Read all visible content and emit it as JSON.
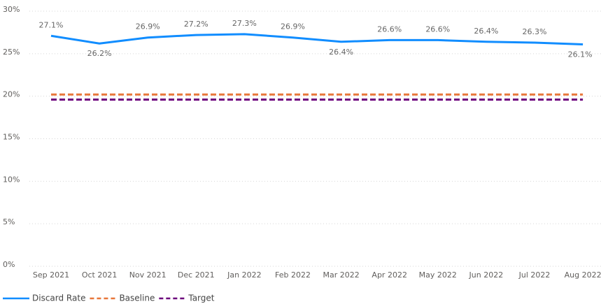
{
  "chart_data": {
    "type": "line",
    "categories": [
      "Sep 2021",
      "Oct 2021",
      "Nov 2021",
      "Dec 2021",
      "Jan 2022",
      "Feb 2022",
      "Mar 2022",
      "Apr 2022",
      "May 2022",
      "Jun 2022",
      "Jul 2022",
      "Aug 2022"
    ],
    "series": [
      {
        "name": "Discard Rate",
        "color": "#118DFF",
        "dash": false,
        "values": [
          27.1,
          26.2,
          26.9,
          27.2,
          27.3,
          26.9,
          26.4,
          26.6,
          26.6,
          26.4,
          26.3,
          26.1
        ],
        "value_labels": [
          "27.1%",
          "26.2%",
          "26.9%",
          "27.2%",
          "27.3%",
          "26.9%",
          "26.4%",
          "26.6%",
          "26.6%",
          "26.4%",
          "26.3%",
          "26.1%"
        ]
      },
      {
        "name": "Baseline",
        "color": "#E8773A",
        "dash": true,
        "values": [
          20.2,
          20.2,
          20.2,
          20.2,
          20.2,
          20.2,
          20.2,
          20.2,
          20.2,
          20.2,
          20.2,
          20.2
        ]
      },
      {
        "name": "Target",
        "color": "#6B007B",
        "dash": true,
        "values": [
          19.6,
          19.6,
          19.6,
          19.6,
          19.6,
          19.6,
          19.6,
          19.6,
          19.6,
          19.6,
          19.6,
          19.6
        ]
      }
    ],
    "ylim": [
      0,
      30
    ],
    "yticks": [
      {
        "value": 0,
        "label": "0%"
      },
      {
        "value": 5,
        "label": "5%"
      },
      {
        "value": 10,
        "label": "10%"
      },
      {
        "value": 15,
        "label": "15%"
      },
      {
        "value": 20,
        "label": "20%"
      },
      {
        "value": 25,
        "label": "25%"
      },
      {
        "value": 30,
        "label": "30%"
      }
    ],
    "grid": true,
    "legend": "bottom-left"
  }
}
